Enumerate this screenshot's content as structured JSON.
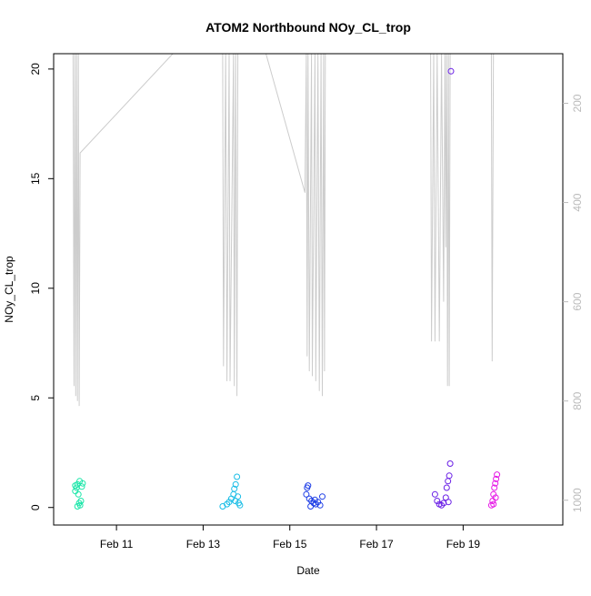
{
  "chart_data": {
    "type": "scatter",
    "title": "ATOM2 Northbound NOy_CL_trop",
    "xlabel": "Date",
    "ylabel": "NOy_CL_trop",
    "x_range_days": [
      9.55,
      21.3
    ],
    "ylim": [
      -0.8,
      20.7
    ],
    "x_ticks": [
      {
        "label": "Feb 11",
        "value": 11
      },
      {
        "label": "Feb 13",
        "value": 13
      },
      {
        "label": "Feb 15",
        "value": 15
      },
      {
        "label": "Feb 17",
        "value": 17
      },
      {
        "label": "Feb 19",
        "value": 19
      }
    ],
    "y_ticks": [
      0,
      5,
      10,
      15,
      20
    ],
    "secondary_axis": {
      "side": "right",
      "ticks": [
        200,
        400,
        600,
        800,
        1000
      ],
      "range": [
        100,
        1050
      ],
      "color": "#bbbbbb"
    },
    "grid": false,
    "series": [
      {
        "color": "#19e6a8",
        "points": [
          [
            10.05,
            0.75
          ],
          [
            10.08,
            0.9
          ],
          [
            10.1,
            1.05
          ],
          [
            10.12,
            0.6
          ],
          [
            10.14,
            0.2
          ],
          [
            10.16,
            0.1
          ],
          [
            10.2,
            0.95
          ],
          [
            10.22,
            1.1
          ],
          [
            10.05,
            1.0
          ],
          [
            10.18,
            0.3
          ],
          [
            10.1,
            0.05
          ],
          [
            10.15,
            1.2
          ]
        ]
      },
      {
        "color": "#19bde6",
        "points": [
          [
            13.45,
            0.05
          ],
          [
            13.55,
            0.15
          ],
          [
            13.6,
            0.25
          ],
          [
            13.65,
            0.4
          ],
          [
            13.7,
            0.6
          ],
          [
            13.72,
            0.85
          ],
          [
            13.75,
            1.05
          ],
          [
            13.78,
            1.4
          ],
          [
            13.8,
            0.5
          ],
          [
            13.82,
            0.2
          ],
          [
            13.85,
            0.1
          ],
          [
            13.74,
            0.3
          ]
        ]
      },
      {
        "color": "#1f3fe6",
        "points": [
          [
            15.38,
            0.6
          ],
          [
            15.4,
            0.9
          ],
          [
            15.42,
            1.0
          ],
          [
            15.45,
            0.4
          ],
          [
            15.5,
            0.3
          ],
          [
            15.55,
            0.2
          ],
          [
            15.6,
            0.15
          ],
          [
            15.65,
            0.25
          ],
          [
            15.7,
            0.1
          ],
          [
            15.75,
            0.5
          ],
          [
            15.48,
            0.05
          ],
          [
            15.58,
            0.35
          ]
        ]
      },
      {
        "color": "#6a1fe6",
        "points": [
          [
            18.35,
            0.6
          ],
          [
            18.4,
            0.3
          ],
          [
            18.45,
            0.15
          ],
          [
            18.5,
            0.1
          ],
          [
            18.55,
            0.2
          ],
          [
            18.6,
            0.45
          ],
          [
            18.62,
            0.9
          ],
          [
            18.65,
            1.2
          ],
          [
            18.68,
            1.45
          ],
          [
            18.7,
            2.0
          ],
          [
            18.72,
            19.9
          ],
          [
            18.66,
            0.25
          ]
        ]
      },
      {
        "color": "#e619e6",
        "points": [
          [
            19.65,
            0.1
          ],
          [
            19.68,
            0.3
          ],
          [
            19.7,
            0.6
          ],
          [
            19.72,
            0.9
          ],
          [
            19.74,
            1.1
          ],
          [
            19.76,
            1.3
          ],
          [
            19.78,
            1.5
          ],
          [
            19.7,
            0.15
          ],
          [
            19.75,
            0.45
          ]
        ]
      }
    ],
    "altitude_line": {
      "color": "#cccccc",
      "points": [
        [
          10.0,
          100
        ],
        [
          10.02,
          770
        ],
        [
          10.04,
          100
        ],
        [
          10.06,
          790
        ],
        [
          10.08,
          100
        ],
        [
          10.1,
          800
        ],
        [
          10.12,
          100
        ],
        [
          10.14,
          810
        ],
        [
          10.16,
          300
        ],
        [
          12.3,
          100
        ],
        [
          13.45,
          100
        ],
        [
          13.47,
          730
        ],
        [
          13.52,
          100
        ],
        [
          13.55,
          760
        ],
        [
          13.6,
          100
        ],
        [
          13.62,
          760
        ],
        [
          13.7,
          100
        ],
        [
          13.72,
          770
        ],
        [
          13.75,
          100
        ],
        [
          13.78,
          790
        ],
        [
          13.8,
          100
        ],
        [
          14.45,
          100
        ],
        [
          15.35,
          380
        ],
        [
          15.38,
          100
        ],
        [
          15.4,
          710
        ],
        [
          15.42,
          100
        ],
        [
          15.45,
          740
        ],
        [
          15.5,
          100
        ],
        [
          15.52,
          750
        ],
        [
          15.58,
          100
        ],
        [
          15.6,
          760
        ],
        [
          15.65,
          100
        ],
        [
          15.68,
          780
        ],
        [
          15.72,
          100
        ],
        [
          15.75,
          790
        ],
        [
          15.78,
          100
        ],
        [
          15.8,
          740
        ],
        [
          15.82,
          100
        ],
        [
          18.25,
          100
        ],
        [
          18.27,
          680
        ],
        [
          18.32,
          100
        ],
        [
          18.35,
          680
        ],
        [
          18.4,
          100
        ],
        [
          18.45,
          680
        ],
        [
          18.5,
          100
        ],
        [
          18.55,
          600
        ],
        [
          18.58,
          100
        ],
        [
          18.6,
          490
        ],
        [
          18.62,
          100
        ],
        [
          18.64,
          770
        ],
        [
          18.66,
          100
        ],
        [
          18.68,
          770
        ],
        [
          18.7,
          100
        ],
        [
          19.65,
          100
        ],
        [
          19.67,
          720
        ],
        [
          19.7,
          100
        ]
      ]
    }
  }
}
